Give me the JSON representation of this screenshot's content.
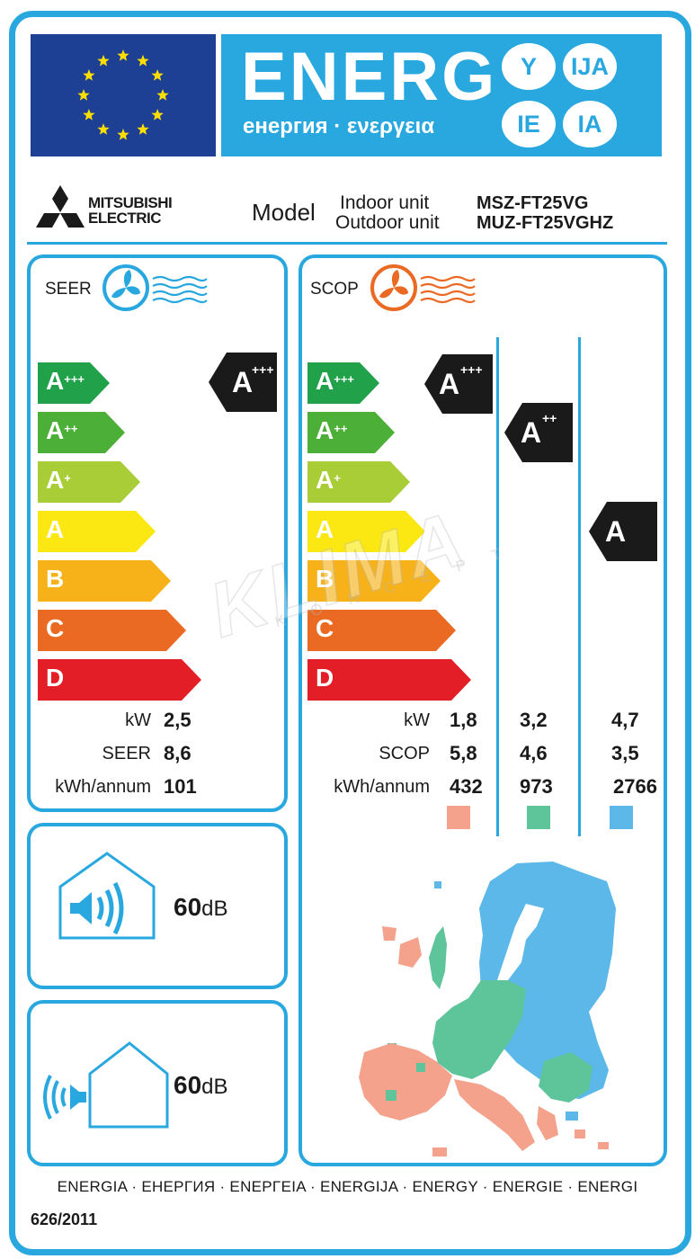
{
  "header": {
    "energy_word": "ENERG",
    "energy_subtitle": "енергия · ενεργεια",
    "suffixes": [
      "Y",
      "IJA",
      "IE",
      "IA"
    ]
  },
  "brand": {
    "line1": "MITSUBISHI",
    "line2": "ELECTRIC"
  },
  "model": {
    "label": "Model",
    "indoor_label": "Indoor unit",
    "outdoor_label": "Outdoor unit",
    "indoor_value": "MSZ-FT25VG",
    "outdoor_value": "MUZ-FT25VGHZ"
  },
  "classes": [
    "A+++",
    "A++",
    "A+",
    "A",
    "B",
    "C",
    "D"
  ],
  "class_colors": [
    "#21a14a",
    "#4caf37",
    "#a9cd37",
    "#fbe813",
    "#f7b21a",
    "#ea6a23",
    "#e41e26"
  ],
  "cooling": {
    "title": "SEER",
    "rating": "A+++",
    "kw_label": "kW",
    "kw": "2,5",
    "seer_label": "SEER",
    "seer": "8,6",
    "kwh_label": "kWh/annum",
    "kwh": "101"
  },
  "heating": {
    "title": "SCOP",
    "zones": [
      {
        "rating": "A+++",
        "kw": "1,8",
        "scop": "5,8",
        "kwh": "432",
        "color": "#f4a28c"
      },
      {
        "rating": "A++",
        "kw": "3,2",
        "scop": "4,6",
        "kwh": "973",
        "color": "#5ec49a"
      },
      {
        "rating": "A",
        "kw": "4,7",
        "scop": "3,5",
        "kwh": "2766",
        "color": "#5bb8e8"
      }
    ],
    "kw_label": "kW",
    "scop_label": "SCOP",
    "kwh_label": "kWh/annum"
  },
  "noise": {
    "indoor": "60",
    "outdoor": "60",
    "unit": "dB"
  },
  "watermark": {
    "word": "KLIMA",
    "sub": "KONCEPT"
  },
  "footer": {
    "languages": "ENERGIA · ЕНЕРГИЯ · ΕΝΕΡΓΕΙΑ · ENERGIJA · ENERGY · ENERGIE · ENERGI",
    "regulation": "626/2011"
  },
  "colors": {
    "frame": "#29a8e0",
    "eu_blue": "#1d3f94",
    "eu_star": "#ffde00",
    "cool_icon": "#29a8e0",
    "heat_icon": "#ea6a23",
    "indicator": "#1a1a1a"
  }
}
